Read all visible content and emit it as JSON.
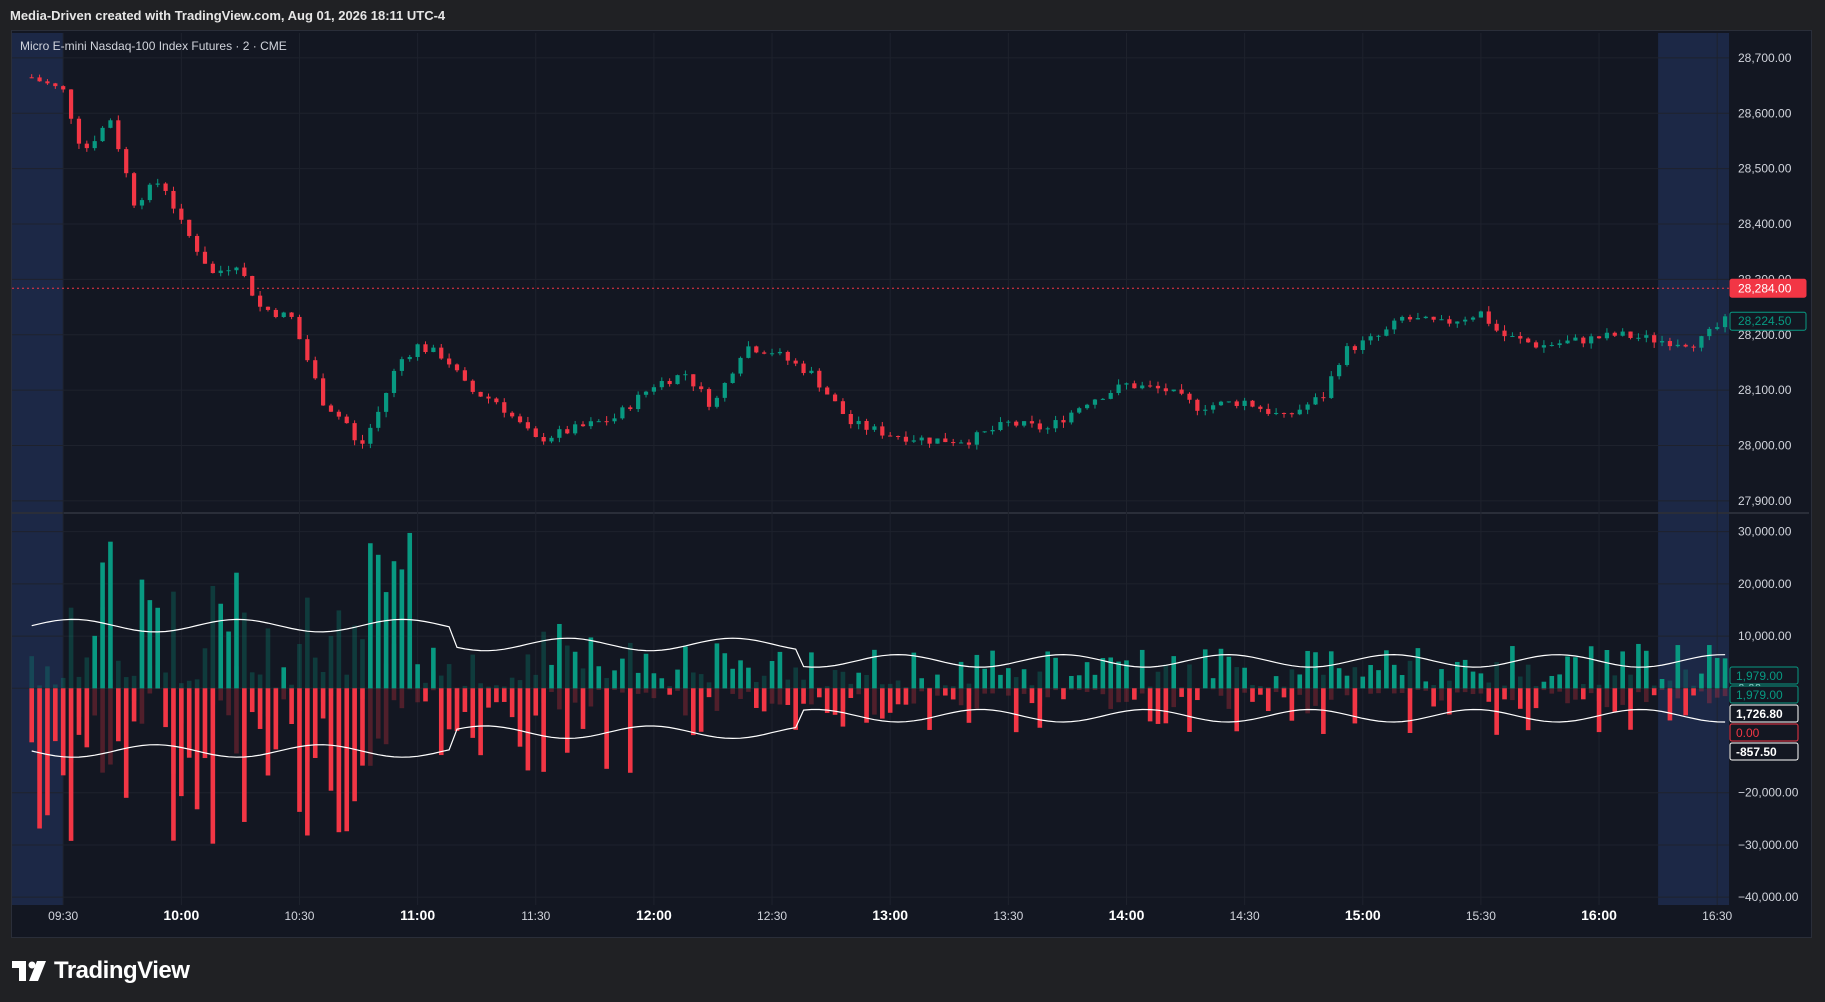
{
  "header": {
    "created_text": "Media-Driven created with TradingView.com, Aug 01, 2026 18:11 UTC-4"
  },
  "footer": {
    "brand": "TradingView"
  },
  "chart": {
    "symbol_text": "Micro E-mini Nasdaq-100 Index Futures · 2 · CME",
    "colors": {
      "background": "#131722",
      "up": "#089981",
      "down": "#f23645",
      "grid": "#1e222d",
      "text": "#d1d4dc",
      "session_shade": "#1c2846"
    }
  },
  "chart_data": [
    {
      "type": "candlestick",
      "title": "Micro E-mini Nasdaq-100 Index Futures · 2 · CME",
      "x_tick_labels": [
        "09:30",
        "10:00",
        "10:30",
        "11:00",
        "11:30",
        "12:00",
        "12:30",
        "13:00",
        "13:30",
        "14:00",
        "14:30",
        "15:00",
        "15:30",
        "16:00",
        "16:30"
      ],
      "y_tick_labels": [
        "28,700.00",
        "28,600.00",
        "28,500.00",
        "28,400.00",
        "28,300.00",
        "28,200.00",
        "28,100.00",
        "28,000.00",
        "27,900.00"
      ],
      "ylim": [
        27880,
        28745
      ],
      "price_markers": [
        {
          "label": "28,284.00",
          "value": 28284,
          "color": "#f23645"
        },
        {
          "label": "28,224.50",
          "value": 28224.5,
          "color": "#089981"
        }
      ],
      "close_path": [
        {
          "t": "09:22",
          "v": 28665
        },
        {
          "t": "09:30",
          "v": 28640
        },
        {
          "t": "09:35",
          "v": 28530
        },
        {
          "t": "09:42",
          "v": 28590
        },
        {
          "t": "09:48",
          "v": 28440
        },
        {
          "t": "09:55",
          "v": 28480
        },
        {
          "t": "10:00",
          "v": 28400
        },
        {
          "t": "10:08",
          "v": 28310
        },
        {
          "t": "10:14",
          "v": 28330
        },
        {
          "t": "10:20",
          "v": 28250
        },
        {
          "t": "10:28",
          "v": 28230
        },
        {
          "t": "10:36",
          "v": 28080
        },
        {
          "t": "10:42",
          "v": 28040
        },
        {
          "t": "10:45",
          "v": 27990
        },
        {
          "t": "10:50",
          "v": 28060
        },
        {
          "t": "10:55",
          "v": 28150
        },
        {
          "t": "11:00",
          "v": 28180
        },
        {
          "t": "11:07",
          "v": 28160
        },
        {
          "t": "11:13",
          "v": 28100
        },
        {
          "t": "11:20",
          "v": 28080
        },
        {
          "t": "11:30",
          "v": 28010
        },
        {
          "t": "11:40",
          "v": 28030
        },
        {
          "t": "11:50",
          "v": 28050
        },
        {
          "t": "12:00",
          "v": 28110
        },
        {
          "t": "12:08",
          "v": 28130
        },
        {
          "t": "12:15",
          "v": 28070
        },
        {
          "t": "12:23",
          "v": 28180
        },
        {
          "t": "12:30",
          "v": 28170
        },
        {
          "t": "12:40",
          "v": 28130
        },
        {
          "t": "12:50",
          "v": 28040
        },
        {
          "t": "13:00",
          "v": 28020
        },
        {
          "t": "13:10",
          "v": 28010
        },
        {
          "t": "13:20",
          "v": 28010
        },
        {
          "t": "13:30",
          "v": 28040
        },
        {
          "t": "13:40",
          "v": 28030
        },
        {
          "t": "13:50",
          "v": 28080
        },
        {
          "t": "14:00",
          "v": 28110
        },
        {
          "t": "14:10",
          "v": 28100
        },
        {
          "t": "14:18",
          "v": 28070
        },
        {
          "t": "14:30",
          "v": 28080
        },
        {
          "t": "14:40",
          "v": 28050
        },
        {
          "t": "14:50",
          "v": 28090
        },
        {
          "t": "14:55",
          "v": 28170
        },
        {
          "t": "15:05",
          "v": 28200
        },
        {
          "t": "15:10",
          "v": 28230
        },
        {
          "t": "15:20",
          "v": 28220
        },
        {
          "t": "15:30",
          "v": 28240
        },
        {
          "t": "15:35",
          "v": 28200
        },
        {
          "t": "15:45",
          "v": 28180
        },
        {
          "t": "15:55",
          "v": 28190
        },
        {
          "t": "16:05",
          "v": 28200
        },
        {
          "t": "16:15",
          "v": 28190
        },
        {
          "t": "16:25",
          "v": 28185
        },
        {
          "t": "16:32",
          "v": 28224.5
        }
      ]
    },
    {
      "type": "bar",
      "title": "",
      "y_tick_labels": [
        "30,000.00",
        "20,000.00",
        "10,000.00",
        "0.00",
        "−20,000.00",
        "−30,000.00",
        "−40,000.00"
      ],
      "ylim": [
        -41500,
        33000
      ],
      "value_labels": [
        {
          "label": "1,979.00",
          "value": 1979,
          "color": "#089981",
          "style": "outline"
        },
        {
          "label": "1,979.00",
          "value": 1979,
          "color": "#089981",
          "style": "outline"
        },
        {
          "label": "1,726.80",
          "value": 1726.8,
          "color": "#ffffff",
          "style": "solid"
        },
        {
          "label": "0.00",
          "value": 0,
          "color": "#f23645",
          "style": "outline"
        },
        {
          "label": "-857.50",
          "value": -857.5,
          "color": "#ffffff",
          "style": "solid"
        }
      ],
      "series": [
        {
          "name": "",
          "color": "#089981",
          "sample_values": [
            30000,
            10000,
            28000,
            20000,
            18000,
            29000,
            12000,
            8000,
            6000,
            23000,
            8000,
            7000
          ]
        },
        {
          "name": "",
          "color": "#f23645",
          "sample_values": [
            -35000,
            -30000,
            -28000,
            -22000,
            -25000,
            -31000,
            -18000,
            -14000,
            -9000,
            -7000,
            -6000,
            -5000
          ]
        }
      ]
    }
  ]
}
